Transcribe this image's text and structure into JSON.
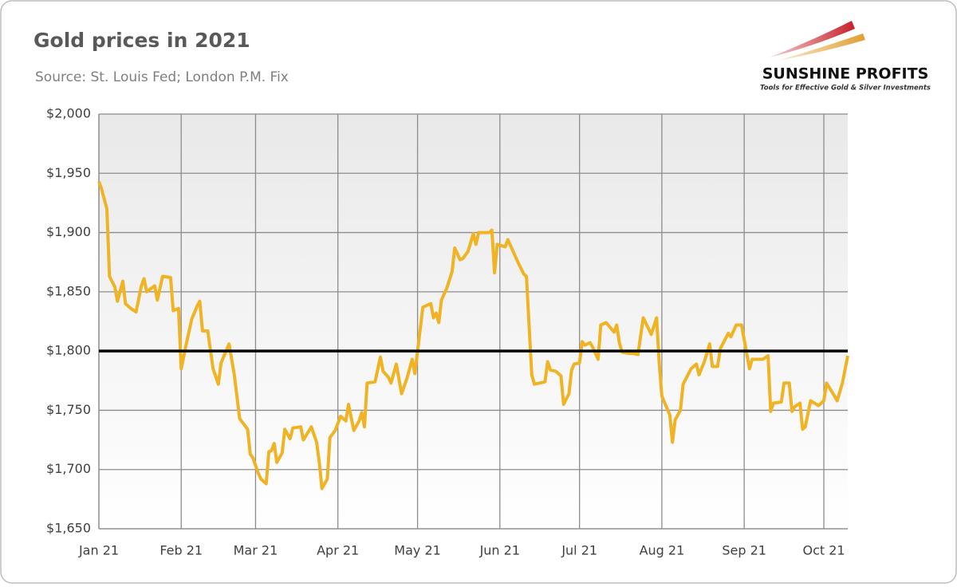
{
  "chart_data": {
    "type": "line",
    "title": "Gold prices in 2021",
    "subtitle": "Source: St. Louis Fed; London P.M. Fix",
    "x": [
      0,
      1,
      3,
      4,
      6,
      7,
      9,
      10,
      12,
      14,
      16,
      17,
      18,
      21,
      22,
      24,
      27,
      28,
      30,
      31,
      33,
      35,
      37,
      38,
      39,
      41,
      43,
      45,
      46,
      49,
      51,
      53,
      54,
      56,
      57,
      58,
      60,
      61,
      63,
      64,
      65,
      66,
      67,
      69,
      70,
      72,
      73,
      76,
      77,
      80,
      82,
      83,
      84,
      86,
      87,
      89,
      91,
      93,
      94,
      96,
      98,
      99,
      100,
      101,
      104,
      106,
      107,
      109,
      110,
      112,
      114,
      116,
      118,
      119,
      122,
      125,
      126,
      127,
      128,
      129,
      131,
      133,
      134,
      136,
      137,
      139,
      141,
      142,
      143,
      147,
      148,
      149,
      150,
      153,
      154,
      158,
      160,
      161,
      163,
      164,
      168,
      169,
      170,
      172,
      174,
      175,
      177,
      178,
      179,
      181,
      182,
      183,
      185,
      186,
      188,
      189,
      191,
      194,
      195,
      196,
      197,
      200,
      201,
      203,
      205,
      208,
      210,
      211,
      212,
      215,
      216,
      217,
      219,
      220,
      223,
      225,
      226,
      228,
      230,
      231,
      233,
      234,
      237,
      238,
      240,
      242,
      245,
      246,
      250,
      252,
      253,
      254,
      257,
      258,
      260,
      261,
      262,
      264,
      265,
      266,
      268,
      271,
      273,
      274,
      277,
      278,
      280,
      282
    ],
    "series": [
      {
        "name": "Gold price",
        "color": "#f0b323",
        "values": [
          1943,
          1937,
          1920,
          1863,
          1854,
          1842,
          1859,
          1840,
          1836,
          1833,
          1855,
          1861,
          1850,
          1855,
          1843,
          1863,
          1862,
          1834,
          1836,
          1785,
          1807,
          1827,
          1838,
          1842,
          1817,
          1817,
          1785,
          1772,
          1790,
          1806,
          1780,
          1743,
          1740,
          1734,
          1713,
          1710,
          1697,
          1692,
          1688,
          1715,
          1716,
          1722,
          1706,
          1714,
          1734,
          1726,
          1735,
          1736,
          1725,
          1736,
          1723,
          1706,
          1684,
          1692,
          1727,
          1733,
          1745,
          1741,
          1755,
          1733,
          1741,
          1748,
          1736,
          1773,
          1774,
          1795,
          1783,
          1778,
          1773,
          1789,
          1764,
          1777,
          1793,
          1781,
          1837,
          1840,
          1828,
          1832,
          1824,
          1843,
          1853,
          1867,
          1887,
          1877,
          1878,
          1884,
          1899,
          1890,
          1900,
          1900,
          1902,
          1866,
          1890,
          1888,
          1894,
          1874,
          1865,
          1863,
          1780,
          1772,
          1774,
          1791,
          1784,
          1783,
          1779,
          1755,
          1764,
          1784,
          1789,
          1790,
          1808,
          1805,
          1807,
          1803,
          1793,
          1822,
          1824,
          1816,
          1822,
          1807,
          1799,
          1798,
          1798,
          1797,
          1828,
          1814,
          1828,
          1790,
          1762,
          1746,
          1723,
          1742,
          1750,
          1772,
          1785,
          1789,
          1780,
          1791,
          1806,
          1787,
          1787,
          1802,
          1815,
          1812,
          1822,
          1822,
          1785,
          1793,
          1793,
          1796,
          1749,
          1756,
          1757,
          1773,
          1773,
          1749,
          1753,
          1756,
          1734,
          1736,
          1758,
          1754,
          1758,
          1773,
          1762,
          1758,
          1773,
          1796
        ]
      }
    ],
    "reference_line": 1800,
    "xlim": [
      0,
      282
    ],
    "xticks": [
      {
        "value": 0,
        "label": "Jan 21"
      },
      {
        "value": 31,
        "label": "Feb 21"
      },
      {
        "value": 59,
        "label": "Mar 21"
      },
      {
        "value": 90,
        "label": "Apr 21"
      },
      {
        "value": 120,
        "label": "May 21"
      },
      {
        "value": 151,
        "label": "Jun 21"
      },
      {
        "value": 181,
        "label": "Jul 21"
      },
      {
        "value": 212,
        "label": "Aug 21"
      },
      {
        "value": 243,
        "label": "Sep 21"
      },
      {
        "value": 273,
        "label": "Oct 21"
      }
    ],
    "ylim": [
      1650,
      2000
    ],
    "yticks": [
      {
        "value": 1650,
        "label": "$1,650"
      },
      {
        "value": 1700,
        "label": "$1,700"
      },
      {
        "value": 1750,
        "label": "$1,750"
      },
      {
        "value": 1800,
        "label": "$1,800"
      },
      {
        "value": 1850,
        "label": "$1,850"
      },
      {
        "value": 1900,
        "label": "$1,900"
      },
      {
        "value": 1950,
        "label": "$1,950"
      },
      {
        "value": 2000,
        "label": "$2,000"
      }
    ],
    "grid": true
  },
  "logo": {
    "name": "SUNSHINE PROFITS",
    "tagline": "Tools for Effective Gold & Silver Investments"
  }
}
